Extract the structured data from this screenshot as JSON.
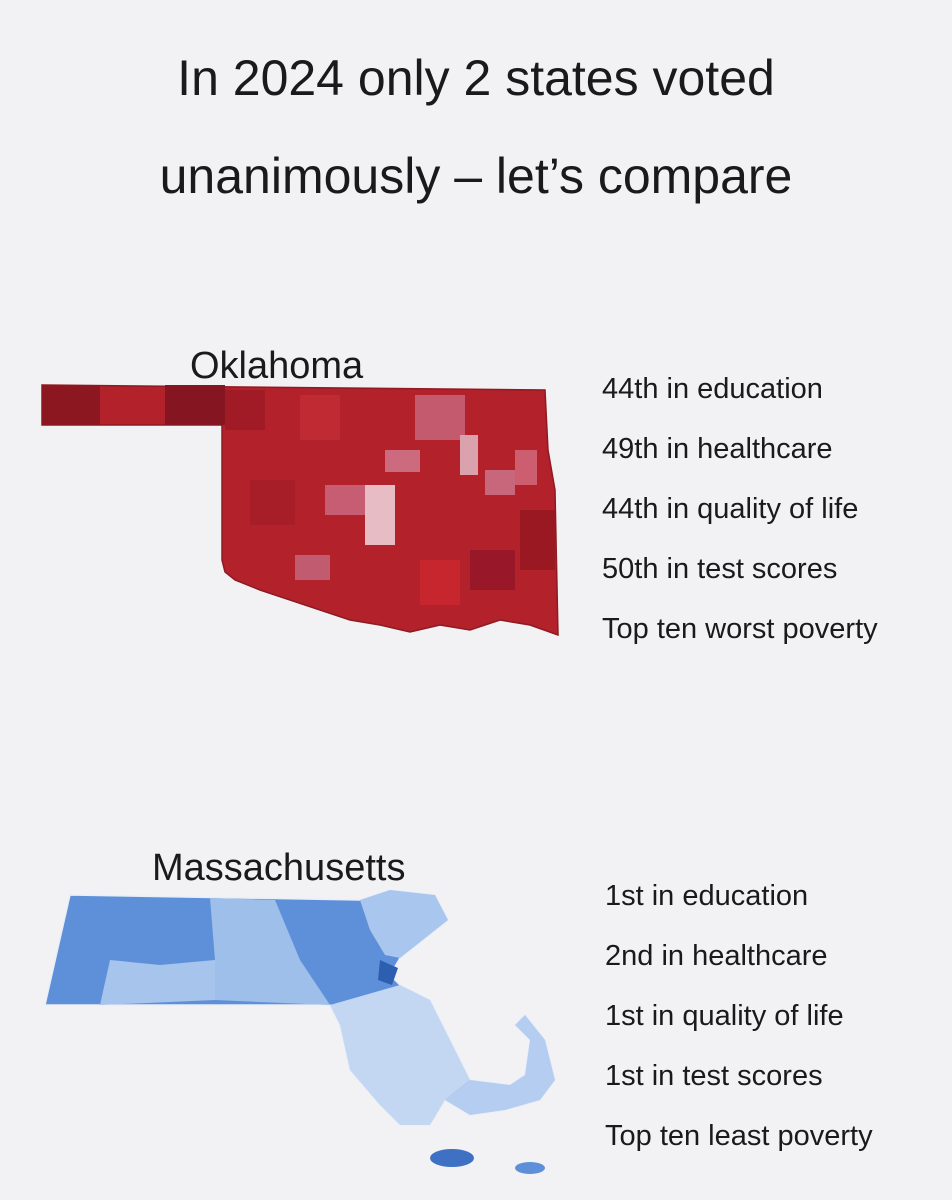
{
  "header": {
    "title_lines": [
      "In 2024 only 2 states voted",
      "unanimously – let’s compare"
    ]
  },
  "states": [
    {
      "name": "Oklahoma",
      "stats": [
        "44th in education",
        "49th in healthcare",
        "44th in quality of life",
        "50th in test scores",
        "Top ten worst poverty"
      ]
    },
    {
      "name": "Massachusetts",
      "stats": [
        "1st in education",
        "2nd in healthcare",
        "1st in quality of life",
        "1st in test scores",
        "Top ten least poverty"
      ]
    }
  ]
}
